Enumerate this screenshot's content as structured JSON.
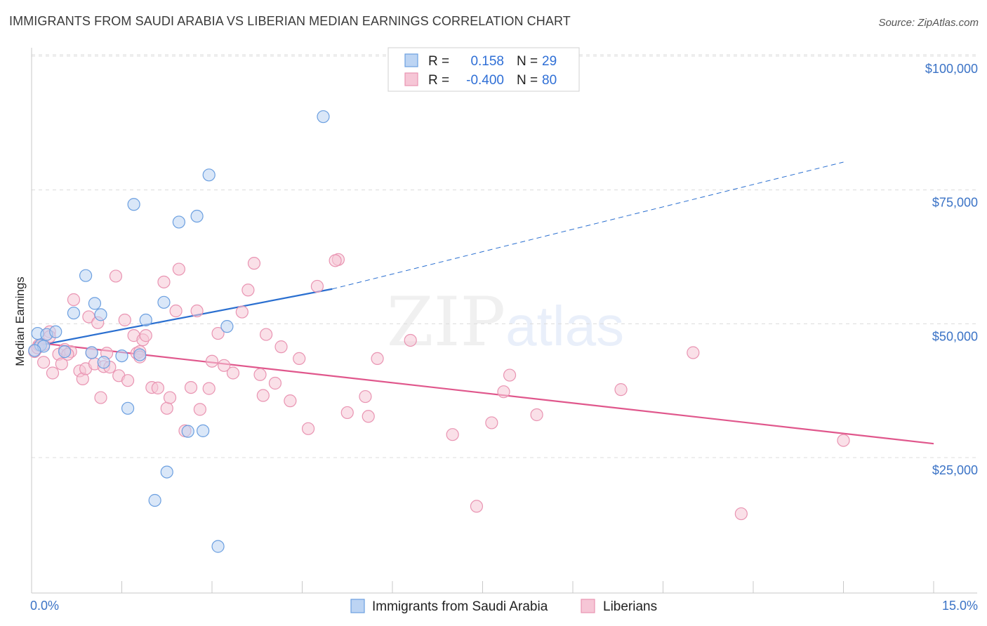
{
  "title": "IMMIGRANTS FROM SAUDI ARABIA VS LIBERIAN MEDIAN EARNINGS CORRELATION CHART",
  "source": "Source: ZipAtlas.com",
  "watermark": "ZIPatlas",
  "colors": {
    "blue": "#6b9fe0",
    "blue_fill": "#bcd4f3",
    "blue_line": "#2a6fd0",
    "pink": "#e994b2",
    "pink_fill": "#f6c6d6",
    "pink_line": "#e0578c",
    "axis_text": "#3b73c6"
  },
  "legend": {
    "rows": [
      {
        "r_label": "R =",
        "r_value": "0.158",
        "n_label": "N =",
        "n_value": "29"
      },
      {
        "r_label": "R =",
        "r_value": "-0.400",
        "n_label": "N =",
        "n_value": "80"
      }
    ]
  },
  "chart_data": {
    "type": "scatter",
    "title": "IMMIGRANTS FROM SAUDI ARABIA VS LIBERIAN MEDIAN EARNINGS CORRELATION CHART",
    "xlabel": "",
    "ylabel": "Median Earnings",
    "x_tick_labels": [
      "0.0%",
      "15.0%"
    ],
    "y_tick_labels": [
      "$25,000",
      "$50,000",
      "$75,000",
      "$100,000"
    ],
    "xlim": [
      0,
      15
    ],
    "ylim": [
      3000,
      105000
    ],
    "grid": true,
    "legend_position": "top-center",
    "series": [
      {
        "name": "Immigrants from Saudi Arabia",
        "color": "#6b9fe0",
        "trend": {
          "x": [
            0.05,
            5.0
          ],
          "y": [
            45800,
            56500
          ],
          "extended_to": [
            13.5,
            80200
          ]
        },
        "points": [
          [
            0.1,
            48200
          ],
          [
            0.15,
            46000
          ],
          [
            0.25,
            48000
          ],
          [
            0.4,
            48500
          ],
          [
            0.55,
            44800
          ],
          [
            0.7,
            52000
          ],
          [
            0.9,
            59000
          ],
          [
            1.05,
            53800
          ],
          [
            1.15,
            51700
          ],
          [
            1.2,
            42800
          ],
          [
            1.5,
            44000
          ],
          [
            1.6,
            34200
          ],
          [
            1.7,
            72300
          ],
          [
            1.8,
            44200
          ],
          [
            1.9,
            50700
          ],
          [
            2.05,
            17000
          ],
          [
            2.2,
            54000
          ],
          [
            2.25,
            22300
          ],
          [
            2.45,
            69000
          ],
          [
            2.6,
            29900
          ],
          [
            2.75,
            70100
          ],
          [
            2.85,
            30000
          ],
          [
            2.95,
            77800
          ],
          [
            3.1,
            8400
          ],
          [
            3.25,
            49500
          ],
          [
            4.85,
            88700
          ],
          [
            0.2,
            45800
          ],
          [
            0.05,
            45000
          ],
          [
            1.0,
            44600
          ]
        ]
      },
      {
        "name": "Liberians",
        "color": "#e994b2",
        "trend": {
          "x": [
            0.05,
            15.0
          ],
          "y": [
            46500,
            27600
          ]
        },
        "points": [
          [
            0.05,
            44800
          ],
          [
            0.12,
            46000
          ],
          [
            0.2,
            42800
          ],
          [
            0.3,
            48500
          ],
          [
            0.35,
            40800
          ],
          [
            0.45,
            44300
          ],
          [
            0.5,
            42500
          ],
          [
            0.55,
            45200
          ],
          [
            0.65,
            44800
          ],
          [
            0.7,
            54500
          ],
          [
            0.8,
            41200
          ],
          [
            0.85,
            39700
          ],
          [
            0.9,
            41600
          ],
          [
            0.95,
            51300
          ],
          [
            1.0,
            44600
          ],
          [
            1.05,
            42500
          ],
          [
            1.1,
            50200
          ],
          [
            1.15,
            36200
          ],
          [
            1.2,
            42000
          ],
          [
            1.25,
            44500
          ],
          [
            1.3,
            41900
          ],
          [
            1.4,
            58900
          ],
          [
            1.45,
            40300
          ],
          [
            1.55,
            50700
          ],
          [
            1.6,
            39400
          ],
          [
            1.7,
            47800
          ],
          [
            1.75,
            44500
          ],
          [
            1.8,
            44800
          ],
          [
            1.85,
            47000
          ],
          [
            1.9,
            47800
          ],
          [
            2.0,
            38100
          ],
          [
            2.1,
            38000
          ],
          [
            2.2,
            57800
          ],
          [
            2.25,
            34200
          ],
          [
            2.3,
            36200
          ],
          [
            2.4,
            52400
          ],
          [
            2.45,
            60200
          ],
          [
            2.55,
            30000
          ],
          [
            2.65,
            38100
          ],
          [
            2.75,
            52400
          ],
          [
            2.8,
            34000
          ],
          [
            2.95,
            37900
          ],
          [
            3.0,
            43000
          ],
          [
            3.1,
            48200
          ],
          [
            3.2,
            42200
          ],
          [
            3.35,
            40800
          ],
          [
            3.5,
            52200
          ],
          [
            3.6,
            56300
          ],
          [
            3.7,
            61300
          ],
          [
            3.8,
            40500
          ],
          [
            3.85,
            36600
          ],
          [
            3.9,
            48000
          ],
          [
            4.05,
            38900
          ],
          [
            4.15,
            45700
          ],
          [
            4.3,
            35600
          ],
          [
            4.45,
            43500
          ],
          [
            4.6,
            30400
          ],
          [
            4.75,
            57000
          ],
          [
            5.1,
            62000
          ],
          [
            5.25,
            33400
          ],
          [
            5.55,
            36400
          ],
          [
            5.6,
            32700
          ],
          [
            5.75,
            43500
          ],
          [
            6.3,
            46900
          ],
          [
            7.0,
            29300
          ],
          [
            7.4,
            15900
          ],
          [
            7.65,
            31500
          ],
          [
            7.85,
            37300
          ],
          [
            7.95,
            40400
          ],
          [
            8.4,
            33000
          ],
          [
            9.8,
            37700
          ],
          [
            11.0,
            44600
          ],
          [
            11.8,
            14500
          ],
          [
            13.5,
            28200
          ],
          [
            0.1,
            45500
          ],
          [
            0.2,
            46100
          ],
          [
            0.3,
            47600
          ],
          [
            0.6,
            44300
          ],
          [
            1.8,
            43800
          ],
          [
            5.05,
            61800
          ]
        ]
      }
    ]
  }
}
